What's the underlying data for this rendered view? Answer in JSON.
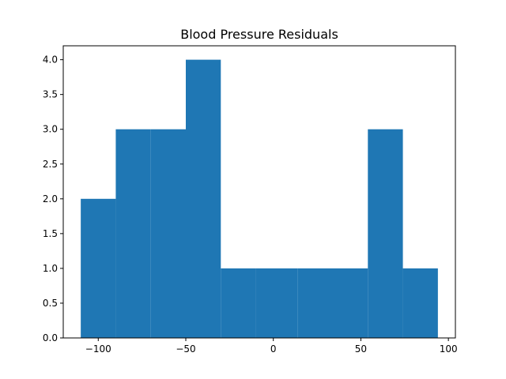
{
  "chart_data": {
    "type": "bar",
    "title": "Blood Pressure Residuals",
    "xlabel": "",
    "ylabel": "",
    "bin_edges": [
      -110,
      -90,
      -70,
      -50,
      -30,
      -10,
      14,
      34,
      54,
      74,
      94
    ],
    "values": [
      2,
      3,
      3,
      4,
      1,
      1,
      1,
      1,
      3,
      1
    ],
    "xlim": [
      -120,
      104
    ],
    "ylim": [
      0,
      4.2
    ],
    "xticks": [
      -100,
      -50,
      0,
      50,
      100
    ],
    "xtick_labels": [
      "−100",
      "−50",
      "0",
      "50",
      "100"
    ],
    "yticks": [
      0,
      0.5,
      1,
      1.5,
      2,
      2.5,
      3,
      3.5,
      4
    ],
    "ytick_labels": [
      "0.0",
      "0.5",
      "1.0",
      "1.5",
      "2.0",
      "2.5",
      "3.0",
      "3.5",
      "4.0"
    ],
    "grid": false,
    "bar_color": "#1f77b4"
  }
}
